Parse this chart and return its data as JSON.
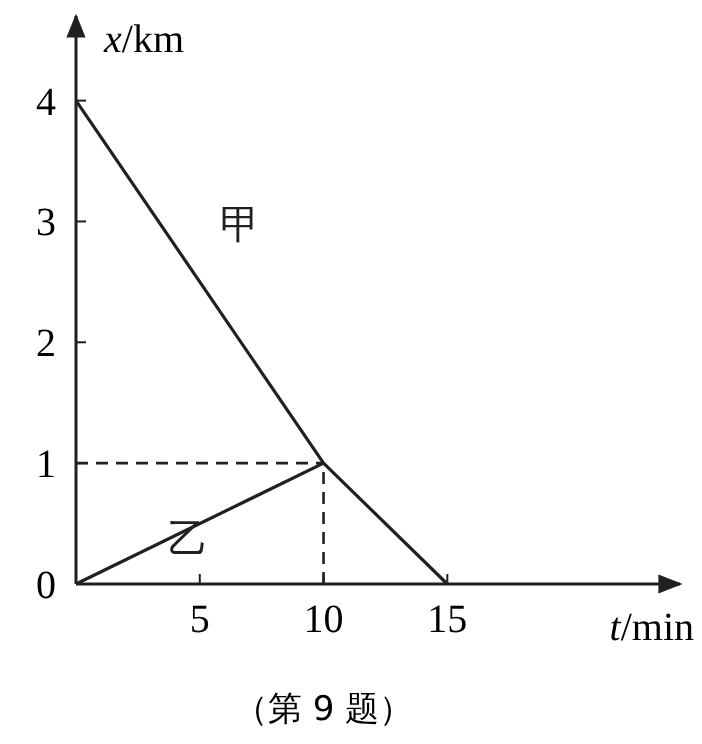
{
  "chart_data": {
    "type": "line",
    "xlabel": "t/min",
    "ylabel": "x/km",
    "xlim": [
      0,
      24.4
    ],
    "ylim": [
      0,
      4.7
    ],
    "xticks": [
      {
        "value": 0,
        "label": null
      },
      5,
      10,
      15
    ],
    "yticks": [
      0,
      1,
      2,
      3,
      4
    ],
    "grid": false,
    "marker": "none",
    "line_style": "solid",
    "series": [
      {
        "name": "甲",
        "color": "#231f20",
        "x": [
          0,
          10,
          15
        ],
        "values": [
          4,
          1,
          0
        ]
      },
      {
        "name": "乙",
        "color": "#231f20",
        "x": [
          0,
          10
        ],
        "values": [
          0,
          1
        ]
      }
    ],
    "ref_lines": [
      {
        "axis": "x",
        "value": 10,
        "line_style": "dashed",
        "color": "#231f20"
      },
      {
        "axis": "y",
        "value": 1,
        "line_style": "dashed",
        "color": "#231f20"
      }
    ],
    "annotations": [
      "（第 9 题）"
    ]
  }
}
